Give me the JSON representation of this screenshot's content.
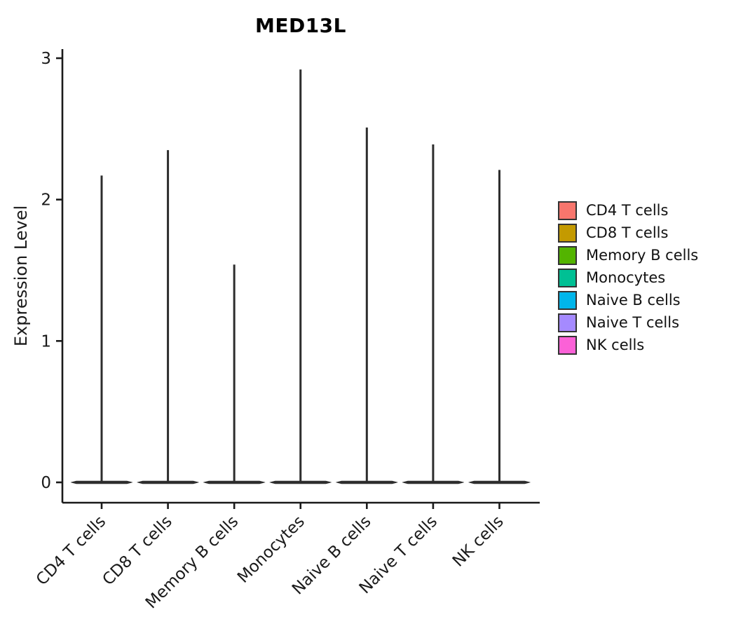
{
  "chart_data": {
    "type": "violin",
    "title": "MED13L",
    "xlabel": "",
    "ylabel": "Expression Level",
    "ylim": [
      0,
      3
    ],
    "yticks": [
      0,
      1,
      2,
      3
    ],
    "grid": false,
    "legend_position": "right",
    "categories": [
      "CD4 T cells",
      "CD8 T cells",
      "Memory B cells",
      "Monocytes",
      "Naive B cells",
      "Naive T cells",
      "NK cells"
    ],
    "violins": [
      {
        "label": "CD4 T cells",
        "color": "#F8766D",
        "peak": 2.17,
        "bulk_at": 0
      },
      {
        "label": "CD8 T cells",
        "color": "#C49A00",
        "peak": 2.35,
        "bulk_at": 0
      },
      {
        "label": "Memory B cells",
        "color": "#53B400",
        "peak": 1.54,
        "bulk_at": 0
      },
      {
        "label": "Monocytes",
        "color": "#00C094",
        "peak": 2.92,
        "bulk_at": 0
      },
      {
        "label": "Naive B cells",
        "color": "#00B6EB",
        "peak": 2.51,
        "bulk_at": 0
      },
      {
        "label": "Naive T cells",
        "color": "#A58AFF",
        "peak": 2.39,
        "bulk_at": 0
      },
      {
        "label": "NK cells",
        "color": "#FB61D7",
        "peak": 2.21,
        "bulk_at": 0
      }
    ],
    "outline_color": "#2d2d2d",
    "axis_color": "#1a1a1a",
    "text_color": "#1a1a1a"
  }
}
